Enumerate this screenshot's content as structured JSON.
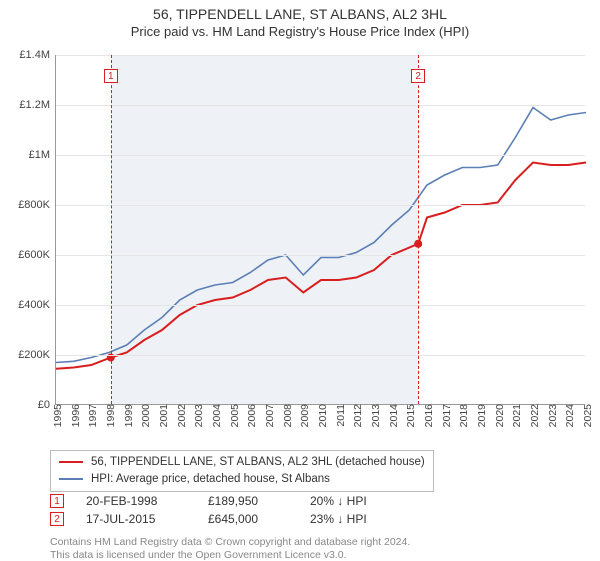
{
  "title": {
    "address": "56, TIPPENDELL LANE, ST ALBANS, AL2 3HL",
    "subtitle": "Price paid vs. HM Land Registry's House Price Index (HPI)"
  },
  "chart": {
    "type": "line",
    "background_color": "#ffffff",
    "shade_color": "#eef1f5",
    "grid_color": "#e5e5e5",
    "axis_color": "#999999",
    "y": {
      "min": 0,
      "max": 1400000,
      "step": 200000,
      "labels": [
        "£0",
        "£200K",
        "£400K",
        "£600K",
        "£800K",
        "£1M",
        "£1.2M",
        "£1.4M"
      ]
    },
    "x": {
      "min": 1995,
      "max": 2025,
      "step": 1,
      "labels": [
        "1995",
        "1996",
        "1997",
        "1998",
        "1999",
        "2000",
        "2001",
        "2002",
        "2003",
        "2004",
        "2005",
        "2006",
        "2007",
        "2008",
        "2009",
        "2010",
        "2011",
        "2012",
        "2013",
        "2014",
        "2015",
        "2016",
        "2017",
        "2018",
        "2019",
        "2020",
        "2021",
        "2022",
        "2023",
        "2024",
        "2025"
      ]
    },
    "shade_from_year": 1998.1,
    "shade_to_year": 2015.5,
    "series": [
      {
        "label": "56, TIPPENDELL LANE, ST ALBANS, AL2 3HL (detached house)",
        "color": "#d81e1e",
        "width": 2,
        "points": [
          [
            1995,
            145000
          ],
          [
            1996,
            150000
          ],
          [
            1997,
            160000
          ],
          [
            1998.1,
            189950
          ],
          [
            1999,
            210000
          ],
          [
            2000,
            260000
          ],
          [
            2001,
            300000
          ],
          [
            2002,
            360000
          ],
          [
            2003,
            400000
          ],
          [
            2004,
            420000
          ],
          [
            2005,
            430000
          ],
          [
            2006,
            460000
          ],
          [
            2007,
            500000
          ],
          [
            2008,
            510000
          ],
          [
            2009,
            450000
          ],
          [
            2010,
            500000
          ],
          [
            2011,
            500000
          ],
          [
            2012,
            510000
          ],
          [
            2013,
            540000
          ],
          [
            2014,
            600000
          ],
          [
            2015.5,
            645000
          ],
          [
            2016,
            750000
          ],
          [
            2017,
            770000
          ],
          [
            2018,
            800000
          ],
          [
            2019,
            800000
          ],
          [
            2020,
            810000
          ],
          [
            2021,
            900000
          ],
          [
            2022,
            970000
          ],
          [
            2023,
            960000
          ],
          [
            2024,
            960000
          ],
          [
            2025,
            970000
          ]
        ]
      },
      {
        "label": "HPI: Average price, detached house, St Albans",
        "color": "#5b7fb5",
        "width": 1.6,
        "points": [
          [
            1995,
            170000
          ],
          [
            1996,
            175000
          ],
          [
            1997,
            190000
          ],
          [
            1998,
            210000
          ],
          [
            1999,
            240000
          ],
          [
            2000,
            300000
          ],
          [
            2001,
            350000
          ],
          [
            2002,
            420000
          ],
          [
            2003,
            460000
          ],
          [
            2004,
            480000
          ],
          [
            2005,
            490000
          ],
          [
            2006,
            530000
          ],
          [
            2007,
            580000
          ],
          [
            2008,
            600000
          ],
          [
            2009,
            520000
          ],
          [
            2010,
            590000
          ],
          [
            2011,
            590000
          ],
          [
            2012,
            610000
          ],
          [
            2013,
            650000
          ],
          [
            2014,
            720000
          ],
          [
            2015,
            780000
          ],
          [
            2016,
            880000
          ],
          [
            2017,
            920000
          ],
          [
            2018,
            950000
          ],
          [
            2019,
            950000
          ],
          [
            2020,
            960000
          ],
          [
            2021,
            1070000
          ],
          [
            2022,
            1190000
          ],
          [
            2023,
            1140000
          ],
          [
            2024,
            1160000
          ],
          [
            2025,
            1170000
          ]
        ]
      }
    ],
    "markers": [
      {
        "n": "1",
        "year": 1998.1,
        "value": 189950,
        "color": "#d81e1e"
      },
      {
        "n": "2",
        "year": 2015.5,
        "value": 645000,
        "color": "#d81e1e"
      }
    ]
  },
  "events": [
    {
      "n": "1",
      "color": "#d81e1e",
      "date": "20-FEB-1998",
      "price": "£189,950",
      "delta": "20% ↓ HPI"
    },
    {
      "n": "2",
      "color": "#d81e1e",
      "date": "17-JUL-2015",
      "price": "£645,000",
      "delta": "23% ↓ HPI"
    }
  ],
  "credit": {
    "line1": "Contains HM Land Registry data © Crown copyright and database right 2024.",
    "line2": "This data is licensed under the Open Government Licence v3.0."
  }
}
